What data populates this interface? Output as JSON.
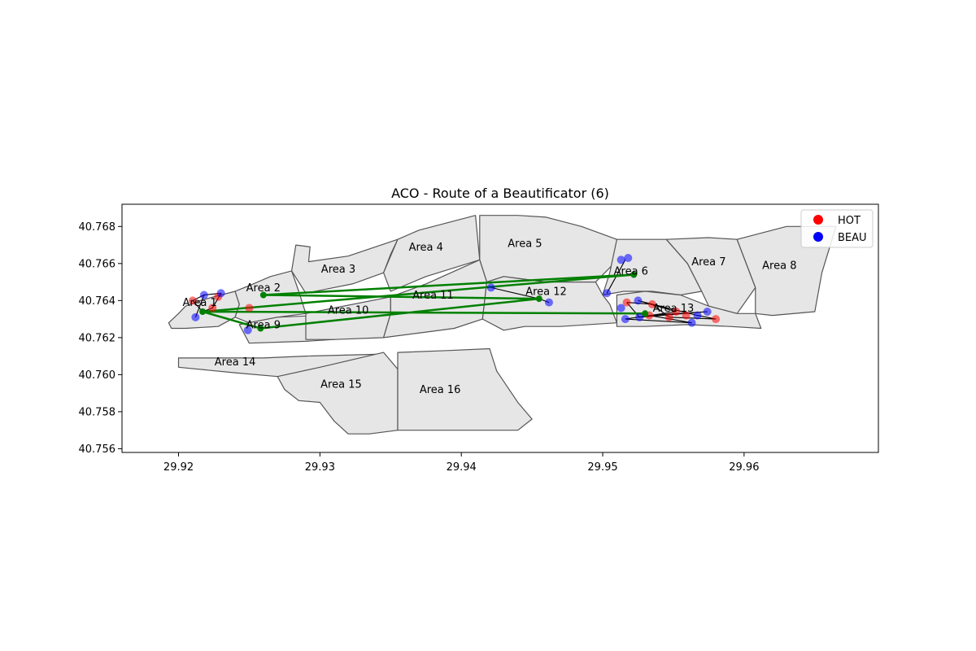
{
  "chart_data": {
    "type": "scatter",
    "title": "ACO - Route of a Beautificator (6)",
    "xlabel": "",
    "ylabel": "",
    "xlim": [
      29.916,
      29.9695
    ],
    "ylim": [
      40.7558,
      40.7692
    ],
    "x_ticks": [
      "29.92",
      "29.93",
      "29.94",
      "29.95",
      "29.96"
    ],
    "y_ticks": [
      "40.756",
      "40.758",
      "40.760",
      "40.762",
      "40.764",
      "40.766",
      "40.768"
    ],
    "grid": false,
    "legend_position": "top-right",
    "legend": [
      {
        "label": "HOT",
        "color": "#ff0000"
      },
      {
        "label": "BEAU",
        "color": "#0000ff"
      }
    ],
    "colors": {
      "hot": "#ff0000",
      "beau": "#0000ff",
      "route": "#008000",
      "area_fill": "#e6e6e6",
      "area_edge": "#555555"
    },
    "areas": [
      {
        "label": "Area 1",
        "label_at": [
          29.9215,
          40.7637
        ],
        "poly": [
          [
            29.9195,
            40.7625
          ],
          [
            29.9193,
            40.7628
          ],
          [
            29.92,
            40.7633
          ],
          [
            29.9205,
            40.7637
          ],
          [
            29.9215,
            40.764
          ],
          [
            29.923,
            40.7643
          ],
          [
            29.924,
            40.7645
          ],
          [
            29.925,
            40.7648
          ],
          [
            29.924,
            40.7645
          ],
          [
            29.9243,
            40.7638
          ],
          [
            29.924,
            40.7631
          ],
          [
            29.9228,
            40.7626
          ],
          [
            29.9205,
            40.7625
          ],
          [
            29.9195,
            40.7625
          ]
        ]
      },
      {
        "label": "Area 2",
        "label_at": [
          29.926,
          40.7645
        ],
        "poly": [
          [
            29.9243,
            40.7638
          ],
          [
            29.924,
            40.7645
          ],
          [
            29.925,
            40.7648
          ],
          [
            29.9265,
            40.7653
          ],
          [
            29.928,
            40.7656
          ],
          [
            29.9285,
            40.7645
          ],
          [
            29.929,
            40.7633
          ],
          [
            29.927,
            40.7631
          ],
          [
            29.925,
            40.7628
          ],
          [
            29.924,
            40.7631
          ],
          [
            29.9243,
            40.7638
          ]
        ]
      },
      {
        "label": "Area 3",
        "label_at": [
          29.9313,
          40.7655
        ],
        "poly": [
          [
            29.928,
            40.7656
          ],
          [
            29.9283,
            40.767
          ],
          [
            29.9293,
            40.7669
          ],
          [
            29.9292,
            40.7661
          ],
          [
            29.932,
            40.7664
          ],
          [
            29.9355,
            40.7673
          ],
          [
            29.935,
            40.7665
          ],
          [
            29.9345,
            40.7655
          ],
          [
            29.9323,
            40.7649
          ],
          [
            29.929,
            40.7644
          ],
          [
            29.928,
            40.7656
          ]
        ]
      },
      {
        "label": "Area 4",
        "label_at": [
          29.9375,
          40.7667
        ],
        "poly": [
          [
            29.9355,
            40.7673
          ],
          [
            29.937,
            40.7678
          ],
          [
            29.939,
            40.7682
          ],
          [
            29.941,
            40.7686
          ],
          [
            29.9413,
            40.7662
          ],
          [
            29.9375,
            40.7653
          ],
          [
            29.935,
            40.7645
          ],
          [
            29.9345,
            40.7655
          ],
          [
            29.9355,
            40.7673
          ]
        ]
      },
      {
        "label": "Area 5",
        "label_at": [
          29.9445,
          40.7669
        ],
        "poly": [
          [
            29.9413,
            40.7686
          ],
          [
            29.944,
            40.7686
          ],
          [
            29.946,
            40.7685
          ],
          [
            29.9485,
            40.768
          ],
          [
            29.951,
            40.7673
          ],
          [
            29.9508,
            40.766
          ],
          [
            29.9495,
            40.765
          ],
          [
            29.946,
            40.765
          ],
          [
            29.943,
            40.7653
          ],
          [
            29.9418,
            40.765
          ],
          [
            29.9413,
            40.7662
          ],
          [
            29.9413,
            40.7686
          ]
        ]
      },
      {
        "label": "Area 6",
        "label_at": [
          29.952,
          40.7654
        ],
        "poly": [
          [
            29.951,
            40.7673
          ],
          [
            29.953,
            40.7673
          ],
          [
            29.9545,
            40.7673
          ],
          [
            29.956,
            40.766
          ],
          [
            29.957,
            40.7645
          ],
          [
            29.9555,
            40.7643
          ],
          [
            29.9535,
            40.7645
          ],
          [
            29.9515,
            40.7645
          ],
          [
            29.95,
            40.7643
          ],
          [
            29.9505,
            40.7655
          ],
          [
            29.951,
            40.7673
          ]
        ]
      },
      {
        "label": "Area 7",
        "label_at": [
          29.9575,
          40.7659
        ],
        "poly": [
          [
            29.9545,
            40.7673
          ],
          [
            29.9575,
            40.7674
          ],
          [
            29.9595,
            40.7673
          ],
          [
            29.96,
            40.7663
          ],
          [
            29.9608,
            40.7647
          ],
          [
            29.9595,
            40.7633
          ],
          [
            29.9575,
            40.7637
          ],
          [
            29.957,
            40.7645
          ],
          [
            29.956,
            40.766
          ],
          [
            29.9545,
            40.7673
          ]
        ]
      },
      {
        "label": "Area 8",
        "label_at": [
          29.9625,
          40.7657
        ],
        "poly": [
          [
            29.9595,
            40.7673
          ],
          [
            29.963,
            40.768
          ],
          [
            29.9665,
            40.768
          ],
          [
            29.9655,
            40.7655
          ],
          [
            29.965,
            40.7634
          ],
          [
            29.962,
            40.7632
          ],
          [
            29.9608,
            40.7633
          ],
          [
            29.9608,
            40.7647
          ],
          [
            29.96,
            40.7663
          ],
          [
            29.9595,
            40.7673
          ]
        ]
      },
      {
        "label": "Area 9",
        "label_at": [
          29.926,
          40.7625
        ],
        "poly": [
          [
            29.9243,
            40.7627
          ],
          [
            29.925,
            40.7617
          ],
          [
            29.929,
            40.7618
          ],
          [
            29.931,
            40.7619
          ],
          [
            29.934,
            40.7621
          ],
          [
            29.933,
            40.7628
          ],
          [
            29.93,
            40.7632
          ],
          [
            29.927,
            40.7631
          ],
          [
            29.9243,
            40.7627
          ]
        ]
      },
      {
        "label": "Area 10",
        "label_at": [
          29.932,
          40.7633
        ],
        "poly": [
          [
            29.929,
            40.7633
          ],
          [
            29.931,
            40.7636
          ],
          [
            29.935,
            40.7642
          ],
          [
            29.935,
            40.7633
          ],
          [
            29.9345,
            40.762
          ],
          [
            29.931,
            40.7619
          ],
          [
            29.929,
            40.7619
          ],
          [
            29.929,
            40.7633
          ]
        ]
      },
      {
        "label": "Area 11",
        "label_at": [
          29.938,
          40.7641
        ],
        "poly": [
          [
            29.935,
            40.7642
          ],
          [
            29.9375,
            40.7649
          ],
          [
            29.9413,
            40.7662
          ],
          [
            29.9418,
            40.765
          ],
          [
            29.9415,
            40.763
          ],
          [
            29.9395,
            40.7625
          ],
          [
            29.9375,
            40.7623
          ],
          [
            29.9345,
            40.762
          ],
          [
            29.935,
            40.7633
          ],
          [
            29.935,
            40.7642
          ]
        ]
      },
      {
        "label": "Area 12",
        "label_at": [
          29.946,
          40.7643
        ],
        "poly": [
          [
            29.9418,
            40.765
          ],
          [
            29.943,
            40.7653
          ],
          [
            29.946,
            40.765
          ],
          [
            29.9495,
            40.765
          ],
          [
            29.95,
            40.7643
          ],
          [
            29.9505,
            40.7638
          ],
          [
            29.951,
            40.7628
          ],
          [
            29.947,
            40.7626
          ],
          [
            29.9445,
            40.7626
          ],
          [
            29.943,
            40.7624
          ],
          [
            29.9415,
            40.763
          ],
          [
            29.9418,
            40.765
          ]
        ]
      },
      {
        "label": "Area 13",
        "label_at": [
          29.955,
          40.7634
        ],
        "poly": [
          [
            29.951,
            40.7643
          ],
          [
            29.953,
            40.7645
          ],
          [
            29.9555,
            40.7643
          ],
          [
            29.9575,
            40.7637
          ],
          [
            29.9595,
            40.7633
          ],
          [
            29.9608,
            40.7633
          ],
          [
            29.9612,
            40.7625
          ],
          [
            29.959,
            40.7626
          ],
          [
            29.956,
            40.7627
          ],
          [
            29.953,
            40.7626
          ],
          [
            29.951,
            40.7626
          ],
          [
            29.951,
            40.7643
          ]
        ]
      },
      {
        "label": "Area 14",
        "label_at": [
          29.924,
          40.7605
        ],
        "poly": [
          [
            29.92,
            40.7609
          ],
          [
            29.923,
            40.7609
          ],
          [
            29.926,
            40.7609
          ],
          [
            29.929,
            40.761
          ],
          [
            29.934,
            40.7611
          ],
          [
            29.9345,
            40.7601
          ],
          [
            29.933,
            40.7595
          ],
          [
            29.93,
            40.7598
          ],
          [
            29.927,
            40.7599
          ],
          [
            29.924,
            40.7601
          ],
          [
            29.92,
            40.7604
          ],
          [
            29.92,
            40.7609
          ]
        ]
      },
      {
        "label": "Area 15",
        "label_at": [
          29.9315,
          40.7593
        ],
        "poly": [
          [
            29.927,
            40.7599
          ],
          [
            29.93,
            40.7604
          ],
          [
            29.9345,
            40.7612
          ],
          [
            29.9355,
            40.7603
          ],
          [
            29.9355,
            40.7586
          ],
          [
            29.9355,
            40.757
          ],
          [
            29.9335,
            40.7568
          ],
          [
            29.932,
            40.7568
          ],
          [
            29.931,
            40.7575
          ],
          [
            29.93,
            40.7585
          ],
          [
            29.9285,
            40.7586
          ],
          [
            29.9275,
            40.7592
          ],
          [
            29.927,
            40.7599
          ]
        ]
      },
      {
        "label": "Area 16",
        "label_at": [
          29.9385,
          40.759
        ],
        "poly": [
          [
            29.9355,
            40.7612
          ],
          [
            29.939,
            40.7613
          ],
          [
            29.942,
            40.7614
          ],
          [
            29.9425,
            40.7602
          ],
          [
            29.944,
            40.7585
          ],
          [
            29.945,
            40.7576
          ],
          [
            29.944,
            40.757
          ],
          [
            29.94,
            40.757
          ],
          [
            29.9355,
            40.757
          ],
          [
            29.9355,
            40.7586
          ],
          [
            29.9355,
            40.7612
          ]
        ]
      }
    ],
    "series": [
      {
        "name": "HOT",
        "points": [
          [
            29.921,
            40.764
          ],
          [
            29.9224,
            40.7636
          ],
          [
            29.9228,
            40.7642
          ],
          [
            29.925,
            40.7636
          ],
          [
            29.9517,
            40.7639
          ],
          [
            29.9535,
            40.7638
          ],
          [
            29.9533,
            40.7632
          ],
          [
            29.9547,
            40.7631
          ],
          [
            29.9552,
            40.7634
          ],
          [
            29.958,
            40.763
          ],
          [
            29.9559,
            40.7632
          ]
        ]
      },
      {
        "name": "BEAU",
        "points": [
          [
            29.9212,
            40.7631
          ],
          [
            29.9218,
            40.7643
          ],
          [
            29.923,
            40.7644
          ],
          [
            29.9249,
            40.7624
          ],
          [
            29.9421,
            40.7647
          ],
          [
            29.9462,
            40.7639
          ],
          [
            29.9503,
            40.7644
          ],
          [
            29.9513,
            40.7662
          ],
          [
            29.9518,
            40.7663
          ],
          [
            29.9513,
            40.7636
          ],
          [
            29.9516,
            40.763
          ],
          [
            29.9525,
            40.764
          ],
          [
            29.9526,
            40.7631
          ],
          [
            29.9563,
            40.7628
          ],
          [
            29.9567,
            40.7632
          ],
          [
            29.9574,
            40.7634
          ]
        ]
      }
    ],
    "route_points": [
      [
        29.9217,
        40.7634
      ],
      [
        29.9258,
        40.7625
      ],
      [
        29.926,
        40.7643
      ],
      [
        29.9455,
        40.7641
      ],
      [
        29.9522,
        40.7654
      ],
      [
        29.953,
        40.7633
      ]
    ],
    "route_order": [
      [
        29.9217,
        40.7634
      ],
      [
        29.9258,
        40.7625
      ],
      [
        29.9455,
        40.7641
      ],
      [
        29.926,
        40.7643
      ],
      [
        29.9522,
        40.7654
      ],
      [
        29.9217,
        40.7634
      ],
      [
        29.953,
        40.7633
      ]
    ],
    "local_paths": [
      [
        [
          29.9212,
          40.7631
        ],
        [
          29.9218,
          40.7643
        ],
        [
          29.921,
          40.764
        ],
        [
          29.9217,
          40.7634
        ],
        [
          29.9224,
          40.7636
        ],
        [
          29.923,
          40.7644
        ],
        [
          29.9218,
          40.7643
        ]
      ],
      [
        [
          29.9421,
          40.7647
        ],
        [
          29.9455,
          40.7641
        ],
        [
          29.9462,
          40.7639
        ]
      ],
      [
        [
          29.9503,
          40.7644
        ],
        [
          29.9516,
          40.7662
        ],
        [
          29.9503,
          40.7644
        ]
      ],
      [
        [
          29.9517,
          40.7639
        ],
        [
          29.9535,
          40.7638
        ],
        [
          29.9547,
          40.7631
        ],
        [
          29.958,
          40.763
        ],
        [
          29.9567,
          40.7632
        ],
        [
          29.9525,
          40.764
        ],
        [
          29.9552,
          40.7634
        ],
        [
          29.9516,
          40.763
        ],
        [
          29.9563,
          40.7628
        ],
        [
          29.9533,
          40.7632
        ],
        [
          29.9574,
          40.7634
        ],
        [
          29.9526,
          40.7631
        ],
        [
          29.9517,
          40.7639
        ]
      ]
    ]
  }
}
